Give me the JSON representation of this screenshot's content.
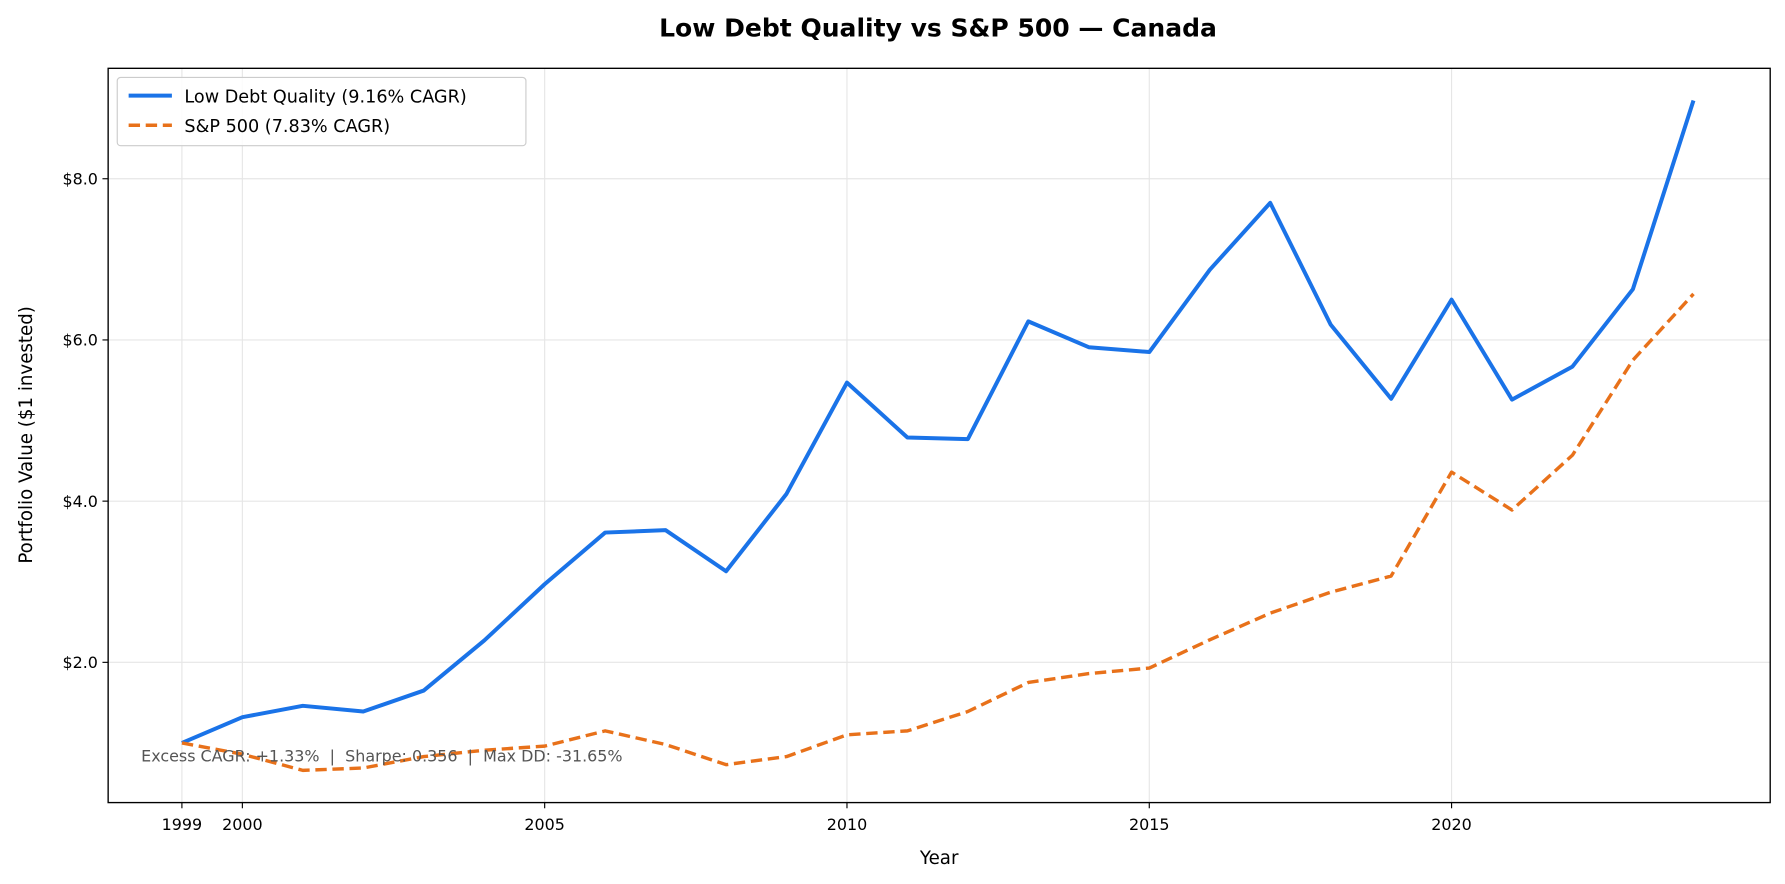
{
  "chart_data": {
    "type": "line",
    "title": "Low Debt Quality vs S&P 500 — Canada",
    "xlabel": "Year",
    "ylabel": "Portfolio Value ($1 invested)",
    "xlim": [
      1997.78,
      2025.27
    ],
    "ylim": [
      0.26,
      9.37
    ],
    "xticks": [
      1999,
      2000,
      2005,
      2010,
      2015,
      2020
    ],
    "yticks": [
      2.0,
      4.0,
      6.0,
      8.0
    ],
    "ytick_labels": [
      "$2.0",
      "$4.0",
      "$6.0",
      "$8.0"
    ],
    "grid": true,
    "legend_position": "top-left",
    "x": [
      1999,
      2000,
      2001,
      2002,
      2003,
      2004,
      2005,
      2006,
      2007,
      2008,
      2009,
      2010,
      2011,
      2012,
      2013,
      2014,
      2015,
      2016,
      2017,
      2018,
      2019,
      2020,
      2021,
      2022,
      2023,
      2024
    ],
    "series": [
      {
        "name": "Low Debt Quality (9.16% CAGR)",
        "color": "#1a73e8",
        "style": "solid",
        "values": [
          1.0,
          1.32,
          1.46,
          1.39,
          1.65,
          2.27,
          2.97,
          3.61,
          3.64,
          3.13,
          4.09,
          5.47,
          4.79,
          4.77,
          6.23,
          5.91,
          5.85,
          6.87,
          7.7,
          6.19,
          5.27,
          6.5,
          5.26,
          5.67,
          6.63,
          8.97
        ]
      },
      {
        "name": "S&P 500 (7.83% CAGR)",
        "color": "#e8711a",
        "style": "dashed",
        "values": [
          1.0,
          0.86,
          0.66,
          0.69,
          0.83,
          0.91,
          0.96,
          1.15,
          0.98,
          0.73,
          0.83,
          1.1,
          1.15,
          1.39,
          1.75,
          1.86,
          1.93,
          2.28,
          2.61,
          2.87,
          3.07,
          4.36,
          3.89,
          4.57,
          5.75,
          6.57
        ]
      }
    ],
    "annotation": "Excess CAGR: +1.33%  |  Sharpe: 0.356  |  Max DD: -31.65%"
  }
}
